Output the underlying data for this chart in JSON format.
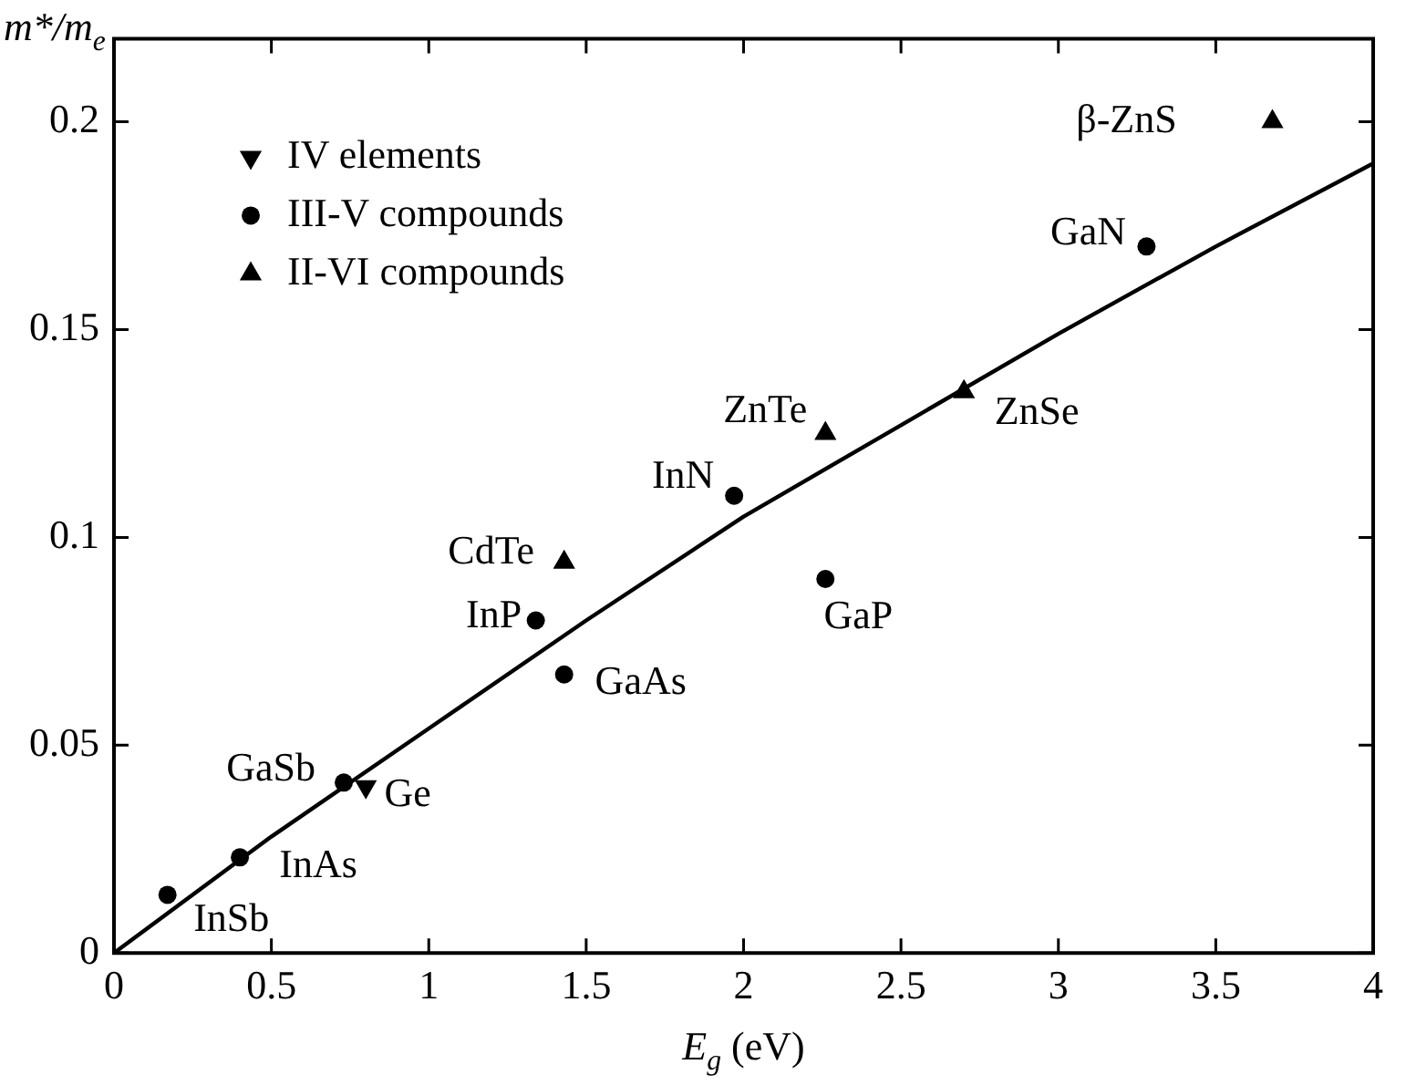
{
  "chart_data": {
    "type": "scatter",
    "xlabel": "E$_{g}$ (eV)",
    "ylabel": "m*/m$_{e}$",
    "xlim": [
      0,
      4
    ],
    "xticks": [
      0,
      0.5,
      1,
      1.5,
      2,
      2.5,
      3,
      3.5,
      4
    ],
    "ylim": [
      0,
      0.22
    ],
    "yticks": [
      0,
      0.05,
      0.1,
      0.15,
      0.2
    ],
    "grid": false,
    "legend": "top left",
    "series": [
      {
        "name": "IV elements",
        "color": "#000000",
        "marker": "triangle-down",
        "x": [
          0.8
        ],
        "values": [
          0.04
        ]
      },
      {
        "name": "III-V compounds",
        "color": "#000000",
        "marker": "circle",
        "x": [
          0.17,
          0.4,
          0.73,
          1.34,
          1.43,
          1.97,
          2.26,
          3.28
        ],
        "values": [
          0.014,
          0.023,
          0.041,
          0.08,
          0.067,
          0.11,
          0.09,
          0.17
        ]
      },
      {
        "name": "II-VI compounds",
        "color": "#000000",
        "marker": "triangle",
        "x": [
          1.43,
          2.26,
          2.7,
          3.68
        ],
        "values": [
          0.094,
          0.125,
          0.135,
          0.2
        ]
      },
      {
        "type": "line",
        "color": "#000000",
        "marker": "none",
        "line_style": "solid",
        "x": [
          0,
          0.5,
          1,
          1.5,
          2,
          2.5,
          3,
          3.5,
          4
        ],
        "values": [
          0,
          0.028,
          0.054,
          0.08,
          0.105,
          0.127,
          0.149,
          0.17,
          0.19
        ]
      }
    ],
    "annotations": [
      {
        "text": "β-ZnS",
        "x": 3.68,
        "y": 0.2
      },
      {
        "text": "GaN",
        "x": 3.28,
        "y": 0.17
      },
      {
        "text": "ZnSe",
        "x": 2.7,
        "y": 0.135
      },
      {
        "text": "ZnTe",
        "x": 2.26,
        "y": 0.125
      },
      {
        "text": "InN",
        "x": 1.97,
        "y": 0.11
      },
      {
        "text": "GaP",
        "x": 2.26,
        "y": 0.09
      },
      {
        "text": "CdTe",
        "x": 1.43,
        "y": 0.094
      },
      {
        "text": "InP",
        "x": 1.34,
        "y": 0.08
      },
      {
        "text": "GaAs",
        "x": 1.43,
        "y": 0.067
      },
      {
        "text": "GaSb",
        "x": 0.73,
        "y": 0.041
      },
      {
        "text": "Ge",
        "x": 0.8,
        "y": 0.04
      },
      {
        "text": "InAs",
        "x": 0.4,
        "y": 0.023
      },
      {
        "text": "InSb",
        "x": 0.17,
        "y": 0.014
      }
    ]
  }
}
